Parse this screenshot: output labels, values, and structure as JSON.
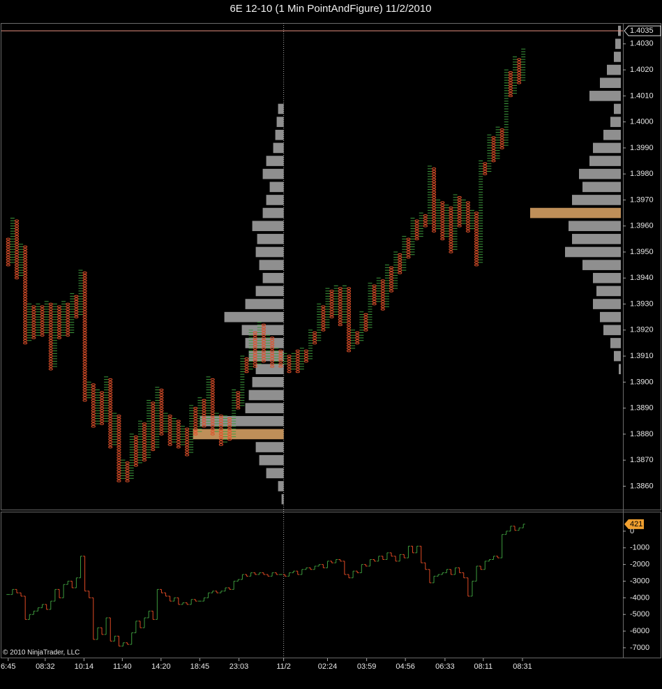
{
  "chart_data": [
    {
      "type": "pointfigure",
      "title": "6E 12-10 (1 Min PointAndFigure)  11/2/2010",
      "box_size": 0.0001,
      "first_column": "O",
      "x_color": "#3d9a3d",
      "o_color": "#e0502a",
      "columns": {
        "high": [
          1.3955,
          1.3963,
          1.3962,
          1.3953,
          1.3952,
          1.393,
          1.3929,
          1.393,
          1.3929,
          1.3931,
          1.393,
          1.393,
          1.3929,
          1.3931,
          1.393,
          1.3934,
          1.3933,
          1.3943,
          1.3942,
          1.39,
          1.3899,
          1.3897,
          1.3896,
          1.3902,
          1.3901,
          1.3888,
          1.3887,
          1.387,
          1.3869,
          1.388,
          1.3879,
          1.3885,
          1.3884,
          1.3893,
          1.3892,
          1.3898,
          1.3897,
          1.3888,
          1.3887,
          1.3886,
          1.3885,
          1.3883,
          1.3882,
          1.3891,
          1.389,
          1.3894,
          1.3893,
          1.3902,
          1.3901,
          1.3888,
          1.3887,
          1.3887,
          1.3886,
          1.3897,
          1.3896,
          1.391,
          1.3909,
          1.392,
          1.3919,
          1.3923,
          1.3922,
          1.3918,
          1.3917,
          1.3913,
          1.3912,
          1.3911,
          1.391,
          1.3911,
          1.3912,
          1.3913,
          1.3912,
          1.392,
          1.3919,
          1.393,
          1.3929,
          1.3936,
          1.3935,
          1.3937,
          1.3936,
          1.3937,
          1.3936,
          1.392,
          1.3919,
          1.3927,
          1.3926,
          1.3938,
          1.3937,
          1.394,
          1.3939,
          1.3945,
          1.3944,
          1.395,
          1.3949,
          1.3956,
          1.3955,
          1.3963,
          1.3962,
          1.3965,
          1.3964,
          1.3983,
          1.3982,
          1.397,
          1.3969,
          1.3968,
          1.3967,
          1.3972,
          1.3971,
          1.397,
          1.3969,
          1.3966,
          1.3965,
          1.3985,
          1.3984,
          1.3995,
          1.3994,
          1.3998,
          1.3997,
          1.402,
          1.4019,
          1.4025,
          1.4024,
          1.4028
        ],
        "low": [
          1.3945,
          1.3946,
          1.394,
          1.3941,
          1.3915,
          1.3916,
          1.3917,
          1.3918,
          1.3918,
          1.3919,
          1.3905,
          1.3906,
          1.3917,
          1.3918,
          1.3918,
          1.3919,
          1.3925,
          1.3926,
          1.3893,
          1.3894,
          1.3883,
          1.3884,
          1.3884,
          1.3885,
          1.3875,
          1.3876,
          1.3862,
          1.3863,
          1.3862,
          1.3863,
          1.3868,
          1.3869,
          1.387,
          1.3871,
          1.3874,
          1.3875,
          1.388,
          1.3881,
          1.3876,
          1.3877,
          1.3875,
          1.3876,
          1.3872,
          1.3873,
          1.388,
          1.3881,
          1.3883,
          1.3884,
          1.388,
          1.3881,
          1.3876,
          1.3877,
          1.3878,
          1.3879,
          1.389,
          1.3891,
          1.3904,
          1.3905,
          1.3906,
          1.3907,
          1.3908,
          1.3909,
          1.3906,
          1.3907,
          1.3906,
          1.3907,
          1.3904,
          1.3905,
          1.3904,
          1.3905,
          1.3908,
          1.3909,
          1.3915,
          1.3916,
          1.392,
          1.3921,
          1.3925,
          1.3926,
          1.3922,
          1.3923,
          1.3912,
          1.3913,
          1.3915,
          1.3916,
          1.392,
          1.3921,
          1.393,
          1.3931,
          1.3928,
          1.3929,
          1.3935,
          1.3936,
          1.3942,
          1.3943,
          1.3948,
          1.3949,
          1.3955,
          1.3956,
          1.396,
          1.3961,
          1.3958,
          1.3959,
          1.3955,
          1.3956,
          1.395,
          1.3951,
          1.396,
          1.3961,
          1.3958,
          1.3959,
          1.3945,
          1.3946,
          1.398,
          1.3981,
          1.3985,
          1.3986,
          1.399,
          1.3991,
          1.401,
          1.4011,
          1.4015,
          1.4016
        ]
      },
      "profiles": [
        {
          "levels": [
            1.3855,
            1.386,
            1.3865,
            1.387,
            1.3875,
            1.388,
            1.3885,
            1.389,
            1.3895,
            1.39,
            1.3905,
            1.391,
            1.3915,
            1.392,
            1.3925,
            1.393,
            1.3935,
            1.394,
            1.3945,
            1.395,
            1.3955,
            1.396,
            1.3965,
            1.397,
            1.3975,
            1.398,
            1.3985,
            1.399,
            1.3995,
            1.4,
            1.4005
          ],
          "volumes": [
            3,
            8,
            25,
            35,
            40,
            130,
            120,
            55,
            50,
            45,
            40,
            50,
            55,
            60,
            85,
            55,
            40,
            30,
            35,
            40,
            38,
            45,
            30,
            25,
            20,
            30,
            25,
            15,
            12,
            10,
            8
          ]
        },
        {
          "levels": [
            1.3905,
            1.391,
            1.3915,
            1.392,
            1.3925,
            1.393,
            1.3935,
            1.394,
            1.3945,
            1.395,
            1.3955,
            1.396,
            1.3965,
            1.397,
            1.3975,
            1.398,
            1.3985,
            1.399,
            1.3995,
            1.4,
            1.4005,
            1.401,
            1.4015,
            1.402,
            1.4025,
            1.403,
            1.4035
          ],
          "volumes": [
            3,
            10,
            15,
            25,
            30,
            40,
            35,
            40,
            55,
            80,
            70,
            75,
            130,
            70,
            55,
            60,
            45,
            40,
            25,
            15,
            10,
            45,
            30,
            20,
            10,
            8,
            4
          ]
        }
      ],
      "profile_color": "#a8a8a8",
      "poc_color": "#e0a868",
      "last_price": 1.4035,
      "last_price_color": "#e89080",
      "xlim": [
        -1.6,
        144.4
      ],
      "ylim": [
        1.3851,
        1.4038
      ],
      "yticks": [
        {
          "value": 1.386,
          "label": "1.3860"
        },
        {
          "value": 1.387,
          "label": "1.3870"
        },
        {
          "value": 1.388,
          "label": "1.3880"
        },
        {
          "value": 1.389,
          "label": "1.3890"
        },
        {
          "value": 1.39,
          "label": "1.3900"
        },
        {
          "value": 1.391,
          "label": "1.3910"
        },
        {
          "value": 1.392,
          "label": "1.3920"
        },
        {
          "value": 1.393,
          "label": "1.3930"
        },
        {
          "value": 1.394,
          "label": "1.3940"
        },
        {
          "value": 1.395,
          "label": "1.3950"
        },
        {
          "value": 1.396,
          "label": "1.3960"
        },
        {
          "value": 1.397,
          "label": "1.3970"
        },
        {
          "value": 1.398,
          "label": "1.3980"
        },
        {
          "value": 1.399,
          "label": "1.3990"
        },
        {
          "value": 1.4,
          "label": "1.4000"
        },
        {
          "value": 1.401,
          "label": "1.4010"
        },
        {
          "value": 1.402,
          "label": "1.4020"
        },
        {
          "value": 1.403,
          "label": "1.4030"
        }
      ],
      "xticks": [
        {
          "value": 0,
          "label": "6:45"
        },
        {
          "value": 8.7,
          "label": "08:32"
        },
        {
          "value": 17.8,
          "label": "10:14"
        },
        {
          "value": 26.8,
          "label": "11:40"
        },
        {
          "value": 35.9,
          "label": "14:20"
        },
        {
          "value": 45,
          "label": "18:45"
        },
        {
          "value": 54.2,
          "label": "23:03"
        },
        {
          "value": 64.7,
          "label": "11/2"
        },
        {
          "value": 75,
          "label": "02:24"
        },
        {
          "value": 84.2,
          "label": "03:59"
        },
        {
          "value": 93.3,
          "label": "04:56"
        },
        {
          "value": 102.6,
          "label": "06:33"
        },
        {
          "value": 111.6,
          "label": "08:11"
        },
        {
          "value": 120.8,
          "label": "08:31"
        }
      ]
    },
    {
      "type": "step",
      "values": [
        -3800,
        -3500,
        -3700,
        -3900,
        -5300,
        -5000,
        -4800,
        -4600,
        -4400,
        -4700,
        -4200,
        -3500,
        -4000,
        -3200,
        -3000,
        -3400,
        -2800,
        -1500,
        -3600,
        -4000,
        -6500,
        -5800,
        -6200,
        -5200,
        -6600,
        -6300,
        -6900,
        -6700,
        -6800,
        -6100,
        -5400,
        -5800,
        -5200,
        -4800,
        -5300,
        -3500,
        -3700,
        -3900,
        -4200,
        -4000,
        -4400,
        -4300,
        -4400,
        -4100,
        -4200,
        -4200,
        -4000,
        -3700,
        -3600,
        -3700,
        -3600,
        -3400,
        -3500,
        -3000,
        -2900,
        -2600,
        -2700,
        -2500,
        -2600,
        -2500,
        -2600,
        -2700,
        -2500,
        -2600,
        -2600,
        -2700,
        -2500,
        -2400,
        -2600,
        -2300,
        -2200,
        -2300,
        -2100,
        -2000,
        -2200,
        -1800,
        -1900,
        -1700,
        -1800,
        -2600,
        -2800,
        -2400,
        -2500,
        -2000,
        -2100,
        -1700,
        -1800,
        -1500,
        -1700,
        -1300,
        -1500,
        -1800,
        -1400,
        -1600,
        -900,
        -1300,
        -900,
        -1900,
        -2300,
        -3100,
        -2700,
        -2600,
        -2500,
        -2300,
        -2600,
        -2200,
        -2500,
        -2800,
        -3900,
        -3000,
        -2100,
        -2300,
        -1800,
        -1700,
        -1500,
        -1600,
        -200,
        0,
        300,
        50,
        200,
        421
      ],
      "up_color": "#3d9a3d",
      "down_color": "#e04a24",
      "tag_color": "#f0a030",
      "ylim": [
        -7590,
        1170
      ],
      "yticks": [
        -7000,
        -6000,
        -5000,
        -4000,
        -3000,
        -2000,
        -1000,
        0
      ],
      "copyright": "© 2010 NinjaTrader, LLC"
    }
  ]
}
